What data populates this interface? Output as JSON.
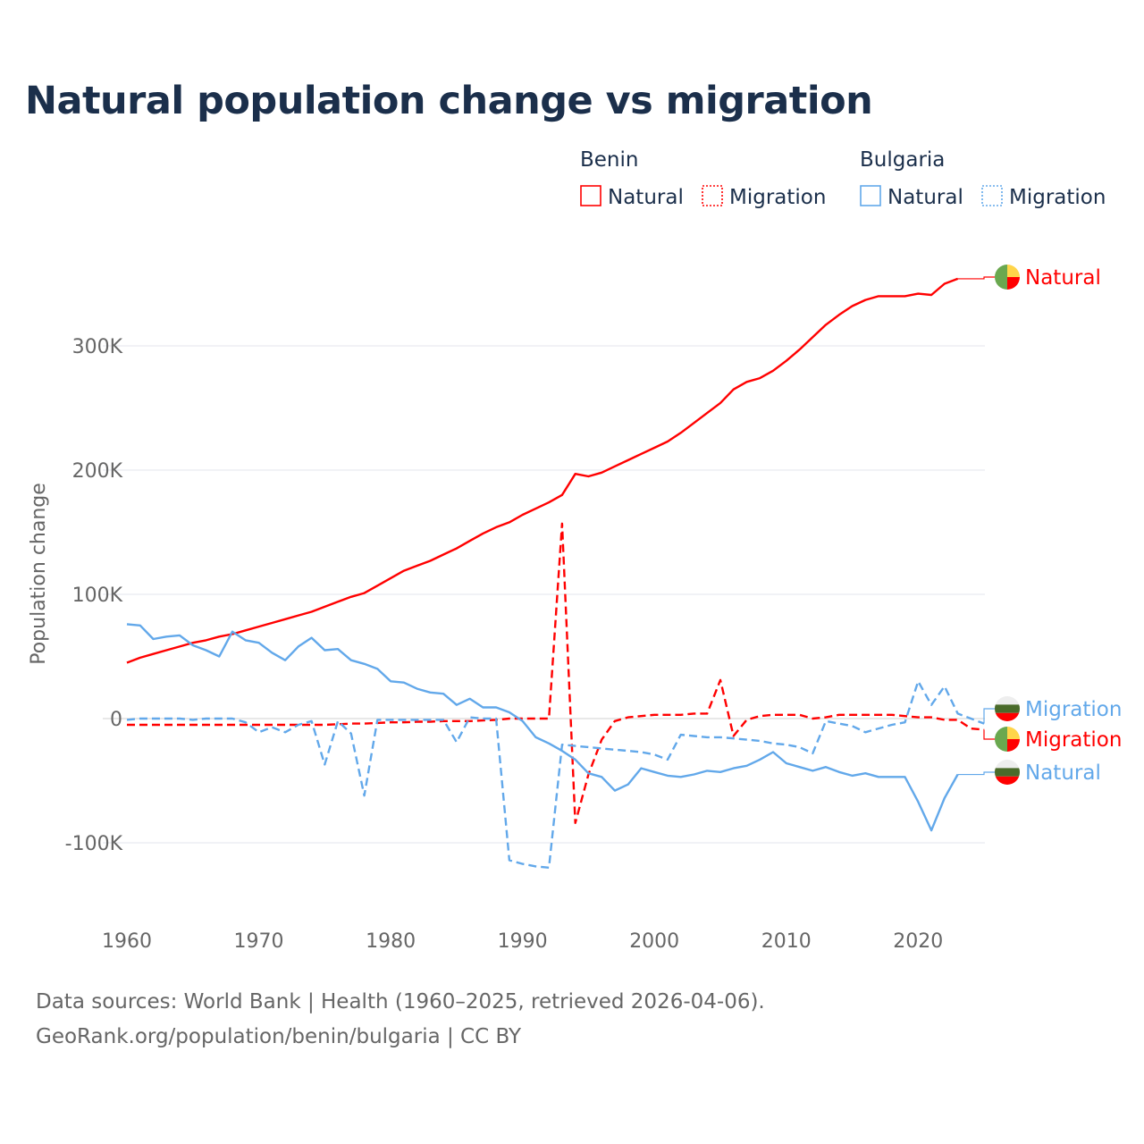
{
  "chart_data": {
    "type": "line",
    "title": "Natural population change vs migration",
    "xlabel": "",
    "ylabel": "Population change",
    "xlim": [
      1960,
      2025
    ],
    "ylim": [
      -150000,
      370000
    ],
    "x_ticks": [
      1960,
      1970,
      1980,
      1990,
      2000,
      2010,
      2020
    ],
    "x_tick_labels": [
      "1960",
      "1970",
      "1980",
      "1990",
      "2000",
      "2010",
      "2020"
    ],
    "y_ticks": [
      -100000,
      0,
      100000,
      200000,
      300000
    ],
    "y_tick_labels": [
      "-100K",
      "0",
      "100K",
      "200K",
      "300K"
    ],
    "grid": true,
    "legend": {
      "placement": "top-right",
      "groups": [
        {
          "name": "Benin",
          "entries": [
            "Natural",
            "Migration"
          ]
        },
        {
          "name": "Bulgaria",
          "entries": [
            "Natural",
            "Migration"
          ]
        }
      ]
    },
    "series": [
      {
        "name": "Natural",
        "country": "Benin",
        "color": "#ff0000",
        "dash": false,
        "start_year": 1960,
        "end_label": "Natural",
        "values_k": [
          45,
          49,
          52,
          55,
          58,
          61,
          63,
          66,
          68,
          71,
          74,
          77,
          80,
          83,
          86,
          90,
          94,
          98,
          101,
          107,
          113,
          119,
          123,
          127,
          132,
          137,
          143,
          149,
          154,
          158,
          164,
          169,
          174,
          180,
          197,
          195,
          198,
          203,
          208,
          213,
          218,
          223,
          230,
          238,
          246,
          254,
          265,
          271,
          274,
          280,
          288,
          297,
          307,
          317,
          325,
          332,
          337,
          340,
          340,
          340,
          342,
          341,
          350,
          354
        ]
      },
      {
        "name": "Migration",
        "country": "Benin",
        "color": "#ff0000",
        "dash": true,
        "start_year": 1960,
        "end_label": "Migration",
        "values_k": [
          -5,
          -5,
          -5,
          -5,
          -5,
          -5,
          -5,
          -5,
          -5,
          -5,
          -5,
          -5,
          -5,
          -5,
          -5,
          -5,
          -4.5,
          -4,
          -4,
          -3.5,
          -3,
          -3,
          -2.5,
          -2.5,
          -2,
          -2,
          -2,
          -1.5,
          -1,
          0,
          0,
          0,
          0,
          157,
          -84,
          -45,
          -17,
          -2,
          1,
          2,
          3,
          3,
          3,
          4,
          4,
          31,
          -14,
          -1,
          2,
          3,
          3,
          3,
          0,
          1,
          3,
          3,
          3,
          3,
          3,
          2,
          1,
          1,
          -1,
          -1,
          -8,
          -9
        ]
      },
      {
        "name": "Natural",
        "country": "Bulgaria",
        "color": "#62a8ea",
        "dash": false,
        "start_year": 1960,
        "end_label": "Natural",
        "values_k": [
          76,
          75,
          64,
          66,
          67,
          59,
          55,
          50,
          70,
          63,
          61,
          53,
          47,
          58,
          65,
          55,
          56,
          47,
          44,
          40,
          30,
          29,
          24,
          21,
          20,
          11,
          16,
          9,
          9,
          5,
          -2,
          -15,
          -20,
          -26,
          -33,
          -44,
          -47,
          -58,
          -53,
          -40,
          -43,
          -46,
          -47,
          -45,
          -42,
          -43,
          -40,
          -38,
          -33,
          -27,
          -36,
          -39,
          -42,
          -39,
          -43,
          -46,
          -44,
          -47,
          -47,
          -47,
          -67,
          -90,
          -64,
          -45
        ]
      },
      {
        "name": "Migration",
        "country": "Bulgaria",
        "color": "#62a8ea",
        "dash": true,
        "start_year": 1960,
        "end_label": "Migration",
        "values_k": [
          -1,
          0,
          0,
          0,
          0,
          -1,
          0,
          0,
          0,
          -3,
          -11,
          -7,
          -11,
          -5,
          -2,
          -37,
          -2,
          -12,
          -62,
          -1,
          -1,
          -1,
          -1,
          -1,
          -1,
          -19,
          1,
          0,
          0,
          -114,
          -117,
          -119,
          -120,
          -21,
          -22,
          -23,
          -24,
          -25,
          -26,
          -27,
          -29,
          -33,
          -13,
          -14,
          -15,
          -15,
          -16,
          -17,
          -18,
          -20,
          -21,
          -23,
          -28,
          -2,
          -4,
          -6,
          -11,
          -8,
          -5,
          -3,
          30,
          11,
          26,
          4,
          0,
          -4
        ]
      }
    ],
    "end_label_order": [
      "Benin Natural",
      "Bulgaria Migration",
      "Benin Migration",
      "Bulgaria Natural"
    ],
    "colors": {
      "benin": "#ff0000",
      "bulgaria": "#62a8ea",
      "grid": "#e3e6ee",
      "axis_text": "#666666"
    }
  },
  "footer": {
    "line1": "Data sources: World Bank | Health (1960–2025, retrieved 2026-04-06).",
    "line2": "GeoRank.org/population/benin/bulgaria | CC BY"
  }
}
